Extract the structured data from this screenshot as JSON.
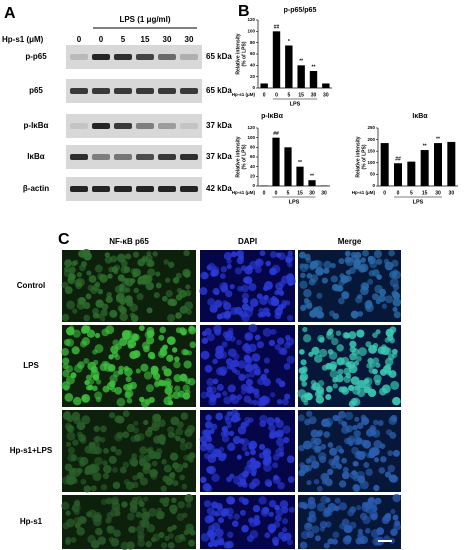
{
  "panel_labels": [
    "A",
    "B",
    "C"
  ],
  "blot": {
    "treatment_header": "LPS (1 μg/ml)",
    "dose_label": "Hp-s1 (μM)",
    "doses": [
      "0",
      "0",
      "5",
      "15",
      "30",
      "30"
    ],
    "rows": [
      {
        "name": "p-p65",
        "size": "65 kDa"
      },
      {
        "name": "p65",
        "size": "65 kDa"
      },
      {
        "name": "p-IκBα",
        "size": "37 kDa"
      },
      {
        "name": "IκBα",
        "size": "37 kDa"
      },
      {
        "name": "β-actin",
        "size": "42 kDa"
      }
    ]
  },
  "chart_data": [
    {
      "type": "bar",
      "title": "p-p65/p65",
      "ylabel": [
        "Relative intensity",
        "(% of LPS)"
      ],
      "xlabel": "Hp-s1 (μM)",
      "group_label": "LPS",
      "categories": [
        "0",
        "0",
        "5",
        "15",
        "30",
        "30"
      ],
      "values": [
        8,
        100,
        75,
        40,
        30,
        8
      ],
      "annotations": [
        null,
        "##",
        "*",
        "**",
        "**",
        null
      ],
      "ylim": [
        0,
        120
      ],
      "yticks": [
        0,
        20,
        40,
        60,
        80,
        100,
        120
      ],
      "color": "#000000"
    },
    {
      "type": "bar",
      "title": "p-IκBα",
      "ylabel": [
        "Relative intensity",
        "(% of LPS)"
      ],
      "xlabel": "Hp-s1 (μM)",
      "group_label": "LPS",
      "categories": [
        "0",
        "0",
        "5",
        "15",
        "30",
        "30"
      ],
      "values": [
        1,
        100,
        80,
        40,
        12,
        1
      ],
      "annotations": [
        null,
        "##",
        null,
        "**",
        "**",
        null
      ],
      "ylim": [
        0,
        120
      ],
      "yticks": [
        0,
        20,
        40,
        60,
        80,
        100,
        120
      ],
      "color": "#000000"
    },
    {
      "type": "bar",
      "title": "IκBα",
      "ylabel": [
        "Relative intensity",
        "(% of LPS)"
      ],
      "xlabel": "Hp-s1 (μM)",
      "group_label": "LPS",
      "categories": [
        "0",
        "0",
        "5",
        "15",
        "30",
        "30"
      ],
      "values": [
        185,
        98,
        105,
        155,
        185,
        190
      ],
      "annotations": [
        null,
        "##",
        null,
        "**",
        "**",
        null
      ],
      "ylim": [
        0,
        250
      ],
      "yticks": [
        0,
        50,
        100,
        150,
        200,
        250
      ],
      "color": "#000000"
    }
  ],
  "imaging": {
    "columns": [
      "NF-κB p65",
      "DAPI",
      "Merge"
    ],
    "rows": [
      "Control",
      "LPS",
      "Hp-s1+LPS",
      "Hp-s1"
    ]
  }
}
